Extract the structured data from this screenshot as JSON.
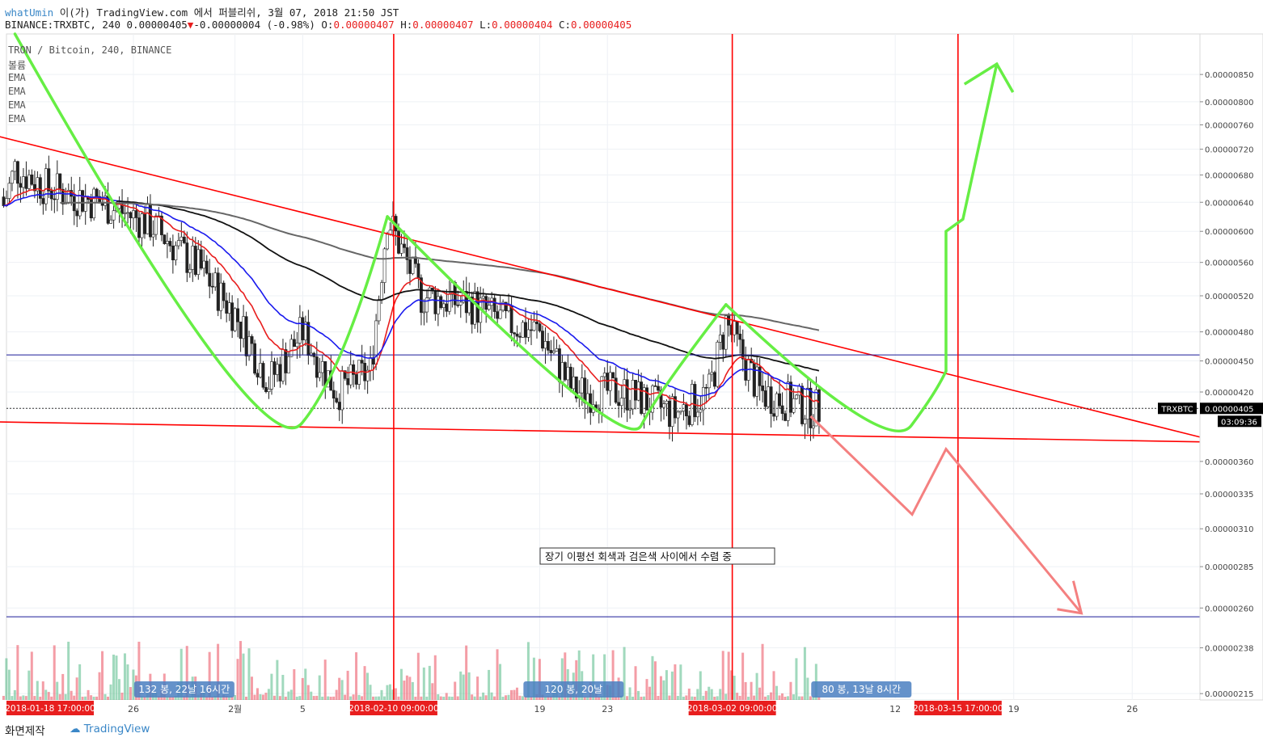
{
  "header": {
    "author": "whatUmin",
    "publish_text": "이(가) TradingView.com 에서 퍼블리쉬, 3월 07, 2018 21:50 JST",
    "symbol": "BINANCE:TRXBTC, 240",
    "last": "0.00000405",
    "change": "-0.00000004 (-0.98%)",
    "ohlc": [
      {
        "k": "O:",
        "v": "0.00000407"
      },
      {
        "k": "H:",
        "v": "0.00000407"
      },
      {
        "k": "L:",
        "v": "0.00000404"
      },
      {
        "k": "C:",
        "v": "0.00000405"
      }
    ]
  },
  "legend": {
    "title": "TRON / Bitcoin, 240, BINANCE",
    "items": [
      "볼륨",
      "EMA",
      "EMA",
      "EMA",
      "EMA"
    ]
  },
  "footer": {
    "left": "화면제작",
    "brand": "TradingView"
  },
  "colors": {
    "up": "#53b987",
    "down": "#eb4d5c",
    "trend": "#ff0000",
    "curve": "#66ee44",
    "ema_fast": "#e81e1e",
    "ema_mid": "#1a1aee",
    "ema_slow": "#111111",
    "ema_long": "#666666",
    "arrow_down": "#f48080",
    "hline": "#1a1a99"
  },
  "chart_data": {
    "type": "candlestick",
    "symbol": "TRXBTC",
    "interval": "240",
    "yscale": "log",
    "ylim": [
      2.12e-06,
      9.3e-06
    ],
    "ytick_labels": [
      "0.00000850",
      "0.00000800",
      "0.00000760",
      "0.00000720",
      "0.00000680",
      "0.00000640",
      "0.00000600",
      "0.00000560",
      "0.00000520",
      "0.00000480",
      "0.00000450",
      "0.00000420",
      "0.00000405",
      "0.00000360",
      "0.00000335",
      "0.00000310",
      "0.00000285",
      "0.00000260",
      "0.00000238",
      "0.00000215"
    ],
    "xtick_labels": [
      "26",
      "2월",
      "5",
      "19",
      "23",
      "12",
      "19",
      "26"
    ],
    "highlighted_dates": [
      "2018-01-18 17:00:00",
      "2018-02-10 09:00:00",
      "2018-03-02 09:00:00",
      "2018-03-15 17:00:00"
    ],
    "last_price": {
      "label": "TRXBTC",
      "value": "0.00000405",
      "countdown": "03:09:36"
    },
    "ranges": [
      {
        "label": "132 봉, 22날 16시간"
      },
      {
        "label": "120 봉, 20날"
      },
      {
        "label": "80 봉, 13날 8시간"
      }
    ],
    "annotation": "장기 이평선 회색과 검은색 사이에서 수렴 중",
    "price_path": [
      {
        "date": "2018-01-18",
        "price": 6.1e-06
      },
      {
        "date": "2018-01-19",
        "price": 6.9e-06
      },
      {
        "date": "2018-01-21",
        "price": 6.6e-06
      },
      {
        "date": "2018-01-24",
        "price": 6.4e-06
      },
      {
        "date": "2018-01-27",
        "price": 6.1e-06
      },
      {
        "date": "2018-01-30",
        "price": 5.5e-06
      },
      {
        "date": "2018-02-01",
        "price": 5e-06
      },
      {
        "date": "2018-02-03",
        "price": 4.3e-06
      },
      {
        "date": "2018-02-05",
        "price": 4.8e-06
      },
      {
        "date": "2018-02-07",
        "price": 4.2e-06
      },
      {
        "date": "2018-02-09",
        "price": 4.4e-06
      },
      {
        "date": "2018-02-10",
        "price": 6.2e-06
      },
      {
        "date": "2018-02-12",
        "price": 5.2e-06
      },
      {
        "date": "2018-02-15",
        "price": 5.1e-06
      },
      {
        "date": "2018-02-17",
        "price": 4.9e-06
      },
      {
        "date": "2018-02-19",
        "price": 4.8e-06
      },
      {
        "date": "2018-02-21",
        "price": 4.2e-06
      },
      {
        "date": "2018-02-24",
        "price": 4.2e-06
      },
      {
        "date": "2018-02-27",
        "price": 4e-06
      },
      {
        "date": "2018-03-01",
        "price": 4.2e-06
      },
      {
        "date": "2018-03-02",
        "price": 4.9e-06
      },
      {
        "date": "2018-03-04",
        "price": 4.2e-06
      },
      {
        "date": "2018-03-07",
        "price": 4.05e-06
      }
    ]
  }
}
